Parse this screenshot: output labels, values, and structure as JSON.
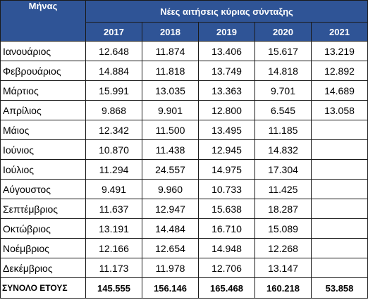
{
  "table": {
    "month_header": "Μήνας",
    "group_header": "Νέες αιτήσεις κύριας σύνταξης",
    "years": [
      "2017",
      "2018",
      "2019",
      "2020",
      "2021"
    ],
    "rows": [
      {
        "month": "Ιανουάριος",
        "values": [
          "12.648",
          "11.874",
          "13.406",
          "15.617",
          "13.219"
        ]
      },
      {
        "month": "Φεβρουάριος",
        "values": [
          "14.884",
          "11.818",
          "13.749",
          "14.818",
          "12.892"
        ]
      },
      {
        "month": "Μάρτιος",
        "values": [
          "15.991",
          "13.035",
          "13.363",
          "9.701",
          "14.689"
        ]
      },
      {
        "month": "Απρίλιος",
        "values": [
          "9.868",
          "9.901",
          "12.800",
          "6.545",
          "13.058"
        ]
      },
      {
        "month": "Μάιος",
        "values": [
          "12.342",
          "11.500",
          "13.495",
          "11.185",
          ""
        ]
      },
      {
        "month": "Ιούνιος",
        "values": [
          "10.870",
          "11.438",
          "12.945",
          "14.832",
          ""
        ]
      },
      {
        "month": "Ιούλιος",
        "values": [
          "11.294",
          "24.557",
          "14.975",
          "17.304",
          ""
        ]
      },
      {
        "month": "Αύγουστος",
        "values": [
          "9.491",
          "9.960",
          "10.733",
          "11.425",
          ""
        ]
      },
      {
        "month": "Σεπτέμβριος",
        "values": [
          "11.637",
          "12.947",
          "15.638",
          "18.287",
          ""
        ]
      },
      {
        "month": "Οκτώβριος",
        "values": [
          "13.191",
          "14.484",
          "16.710",
          "15.089",
          ""
        ]
      },
      {
        "month": "Νοέμβριος",
        "values": [
          "12.166",
          "12.654",
          "14.948",
          "12.268",
          ""
        ]
      },
      {
        "month": "Δεκέμβριος",
        "values": [
          "11.173",
          "11.978",
          "12.706",
          "13.147",
          ""
        ]
      }
    ],
    "total": {
      "label": "ΣΥΝΟΛΟ ΕΤΟΥΣ",
      "values": [
        "145.555",
        "156.146",
        "165.468",
        "160.218",
        "53.858"
      ]
    }
  },
  "colors": {
    "header_bg": "#2f5496",
    "header_text": "#ffffff",
    "border": "#1a1a1a"
  }
}
